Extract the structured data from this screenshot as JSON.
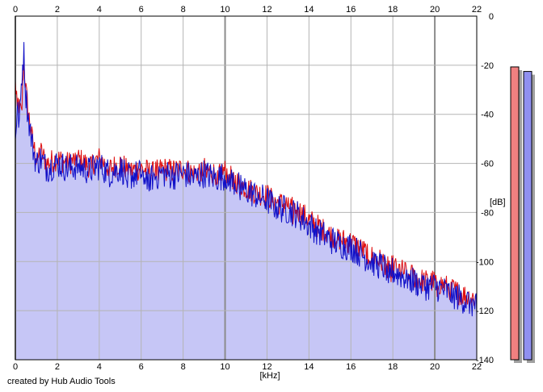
{
  "credit": "created by Hub Audio Tools",
  "chart_data": {
    "type": "area",
    "xlabel": "[kHz]",
    "ylabel": "[dB]",
    "xlim": [
      0,
      22
    ],
    "ylim": [
      -140,
      0
    ],
    "x_ticks": [
      0,
      2,
      4,
      6,
      8,
      10,
      12,
      14,
      16,
      18,
      20,
      22
    ],
    "y_ticks": [
      0,
      -20,
      -40,
      -60,
      -80,
      -100,
      -120,
      -140
    ],
    "grid": true,
    "colors": {
      "background": "#c8c8f8",
      "fill": "#c6c6f6",
      "grid": "#b4b4b4",
      "left_channel": "#e01010",
      "right_channel": "#1010c8",
      "left_meter": "#f08080",
      "right_meter": "#9090f0",
      "meter_shadow": "#a0a0a0"
    },
    "series": [
      {
        "channel": "left",
        "color": "#e01010",
        "x": [
          0.0,
          0.1,
          0.2,
          0.3,
          0.4,
          0.5,
          0.6,
          0.8,
          1.0,
          1.2,
          1.5,
          2.0,
          2.5,
          3.0,
          3.5,
          4.0,
          4.5,
          5.0,
          5.5,
          6.0,
          6.5,
          7.0,
          7.5,
          8.0,
          8.5,
          9.0,
          9.5,
          10.0,
          10.5,
          11.0,
          11.5,
          12.0,
          12.5,
          13.0,
          13.5,
          14.0,
          14.5,
          15.0,
          15.5,
          16.0,
          16.5,
          17.0,
          17.5,
          18.0,
          18.5,
          19.0,
          19.5,
          20.0,
          20.5,
          21.0,
          21.5,
          22.0
        ],
        "y": [
          -28,
          -34,
          -38,
          -40,
          -17,
          -30,
          -38,
          -50,
          -58,
          -55,
          -60,
          -58,
          -60,
          -58,
          -61,
          -58,
          -62,
          -60,
          -63,
          -62,
          -64,
          -62,
          -63,
          -62,
          -64,
          -62,
          -64,
          -63,
          -67,
          -70,
          -72,
          -73,
          -76,
          -77,
          -79,
          -83,
          -86,
          -89,
          -91,
          -92,
          -95,
          -98,
          -100,
          -102,
          -104,
          -106,
          -108,
          -108,
          -110,
          -112,
          -114,
          -115
        ]
      },
      {
        "channel": "right",
        "color": "#1010c8",
        "x": [
          0.0,
          0.1,
          0.2,
          0.3,
          0.4,
          0.5,
          0.6,
          0.8,
          1.0,
          1.2,
          1.5,
          2.0,
          2.5,
          3.0,
          3.5,
          4.0,
          4.5,
          5.0,
          5.5,
          6.0,
          6.5,
          7.0,
          7.5,
          8.0,
          8.5,
          9.0,
          9.5,
          10.0,
          10.5,
          11.0,
          11.5,
          12.0,
          12.5,
          13.0,
          13.5,
          14.0,
          14.5,
          15.0,
          15.5,
          16.0,
          16.5,
          17.0,
          17.5,
          18.0,
          18.5,
          19.0,
          19.5,
          20.0,
          20.5,
          21.0,
          21.5,
          22.0
        ],
        "y": [
          -48,
          -38,
          -44,
          -25,
          -14,
          -32,
          -40,
          -52,
          -60,
          -58,
          -62,
          -60,
          -62,
          -61,
          -63,
          -61,
          -64,
          -62,
          -65,
          -64,
          -66,
          -64,
          -65,
          -64,
          -66,
          -64,
          -66,
          -65,
          -68,
          -71,
          -73,
          -75,
          -78,
          -79,
          -81,
          -85,
          -88,
          -91,
          -93,
          -94,
          -97,
          -100,
          -102,
          -104,
          -106,
          -108,
          -110,
          -110,
          -112,
          -114,
          -116,
          -118
        ]
      }
    ],
    "meters": {
      "left_level": -11,
      "right_level": -13,
      "range": [
        -140,
        0
      ]
    }
  }
}
